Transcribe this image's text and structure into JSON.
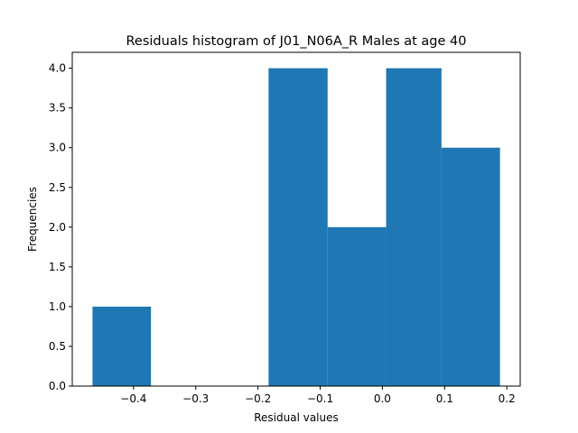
{
  "chart_data": {
    "type": "bar",
    "title": "Residuals histogram of J01_N06A_R Males at age 40",
    "xlabel": "Residual values",
    "ylabel": "Frequencies",
    "bins": [
      {
        "x0": -0.466,
        "x1": -0.372,
        "count": 1
      },
      {
        "x0": -0.372,
        "x1": -0.277,
        "count": 0
      },
      {
        "x0": -0.277,
        "x1": -0.183,
        "count": 0
      },
      {
        "x0": -0.183,
        "x1": -0.088,
        "count": 4
      },
      {
        "x0": -0.088,
        "x1": 0.006,
        "count": 2
      },
      {
        "x0": 0.006,
        "x1": 0.095,
        "count": 4
      },
      {
        "x0": 0.095,
        "x1": 0.189,
        "count": 3
      }
    ],
    "xlim": [
      -0.4985,
      0.2215
    ],
    "ylim": [
      0,
      4.2
    ],
    "xticks": [
      -0.4,
      -0.3,
      -0.2,
      -0.1,
      0.0,
      0.1,
      0.2
    ],
    "xtick_labels": [
      "−0.4",
      "−0.3",
      "−0.2",
      "−0.1",
      "0.0",
      "0.1",
      "0.2"
    ],
    "yticks": [
      0.0,
      0.5,
      1.0,
      1.5,
      2.0,
      2.5,
      3.0,
      3.5,
      4.0
    ],
    "ytick_labels": [
      "0.0",
      "0.5",
      "1.0",
      "1.5",
      "2.0",
      "2.5",
      "3.0",
      "3.5",
      "4.0"
    ],
    "bar_color": "#1f77b4",
    "grid": false
  }
}
